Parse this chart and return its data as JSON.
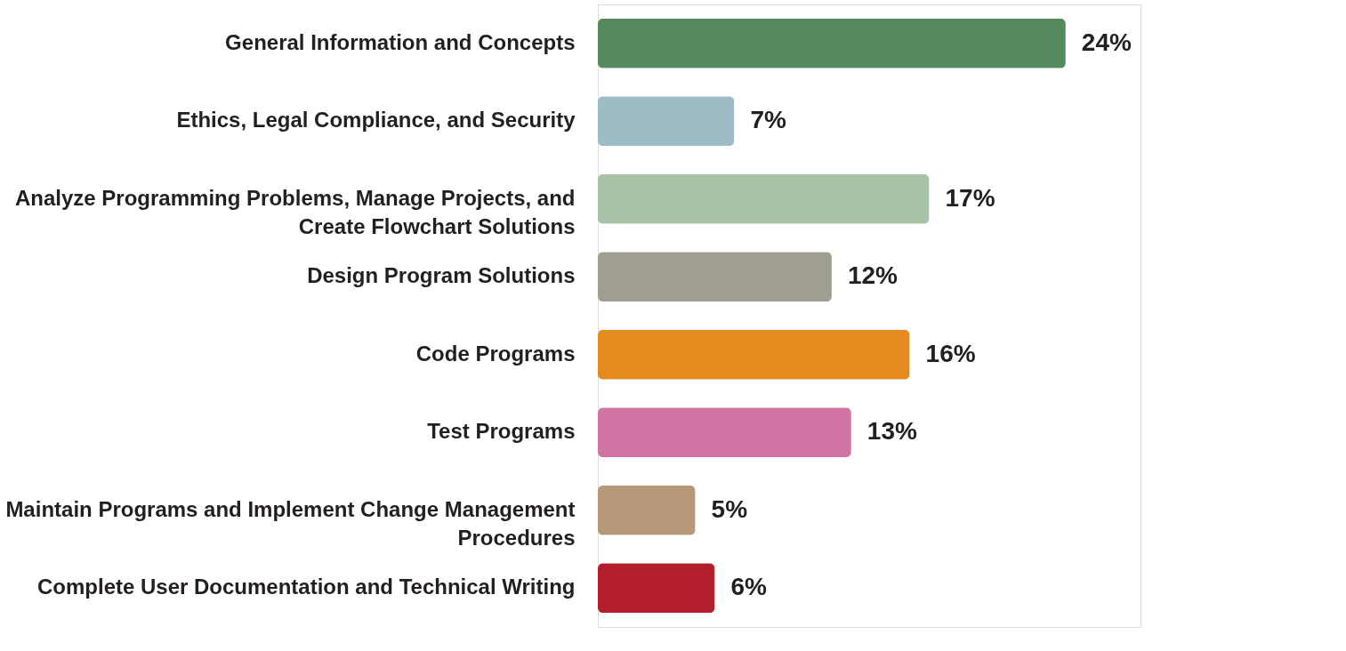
{
  "chart_data": {
    "type": "bar",
    "orientation": "horizontal",
    "tick_labels": "y",
    "categories": [
      "General Information and Concepts",
      "Ethics, Legal Compliance, and Security",
      "Analyze Programming Problems, Manage Projects, and Create Flowchart Solutions",
      "Design Program Solutions",
      "Code Programs",
      "Test Programs",
      "Maintain Programs and Implement Change Management Procedures",
      "Complete User Documentation and Technical Writing"
    ],
    "values": [
      24,
      7,
      17,
      12,
      16,
      13,
      5,
      6
    ],
    "colors": [
      "#548a5e",
      "#9dbcc6",
      "#a8c4a8",
      "#a09e90",
      "#e58a1e",
      "#d074a4",
      "#b59878",
      "#b21e2a"
    ],
    "value_labels": [
      "24%",
      "7%",
      "17%",
      "12%",
      "16%",
      "13%",
      "5%",
      "6%"
    ]
  }
}
